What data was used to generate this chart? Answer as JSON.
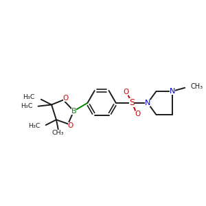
{
  "bg_color": "#ffffff",
  "bond_color": "#1a1a1a",
  "boron_color": "#008000",
  "oxygen_color": "#cc0000",
  "nitrogen_color": "#0000cc",
  "sulfur_color": "#cc0000",
  "figsize": [
    3.0,
    3.0
  ],
  "dpi": 100,
  "xlim": [
    0,
    10
  ],
  "ylim": [
    0,
    10
  ]
}
